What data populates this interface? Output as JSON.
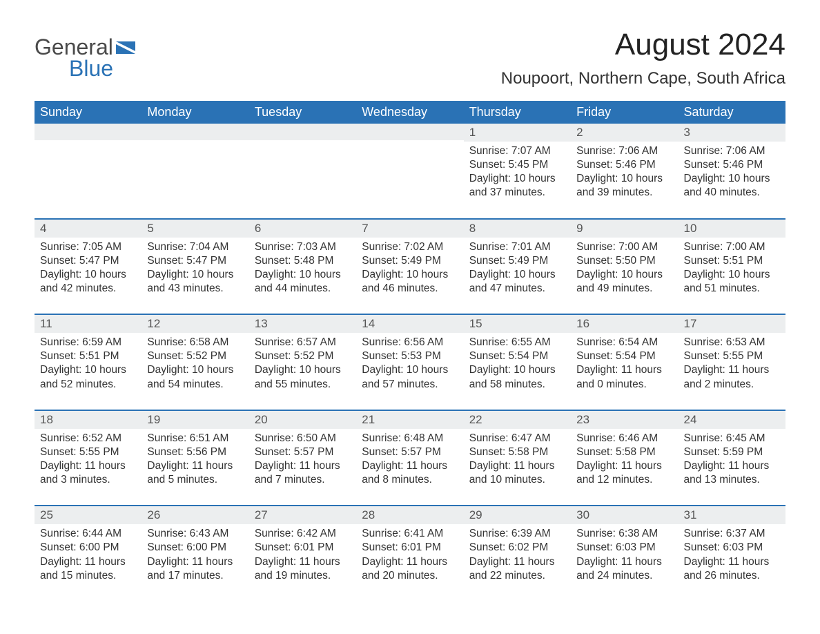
{
  "brand": {
    "word1": "General",
    "word2": "Blue",
    "flag_color": "#2a72b5",
    "text_gray": "#4a4a4a"
  },
  "title": "August 2024",
  "location": "Noupoort, Northern Cape, South Africa",
  "colors": {
    "header_bg": "#2a72b5",
    "header_fg": "#ffffff",
    "daynum_bg": "#eceeef",
    "daynum_fg": "#555555",
    "cell_border": "#2a72b5",
    "body_text": "#333333",
    "page_bg": "#ffffff"
  },
  "typography": {
    "title_fontsize": 44,
    "location_fontsize": 24,
    "header_fontsize": 18,
    "daynum_fontsize": 17,
    "cell_fontsize": 15.5,
    "logo_fontsize": 32,
    "font_family": "Arial"
  },
  "days_of_week": [
    "Sunday",
    "Monday",
    "Tuesday",
    "Wednesday",
    "Thursday",
    "Friday",
    "Saturday"
  ],
  "weeks": [
    [
      {
        "n": "",
        "sunrise": "",
        "sunset": "",
        "daylight": ""
      },
      {
        "n": "",
        "sunrise": "",
        "sunset": "",
        "daylight": ""
      },
      {
        "n": "",
        "sunrise": "",
        "sunset": "",
        "daylight": ""
      },
      {
        "n": "",
        "sunrise": "",
        "sunset": "",
        "daylight": ""
      },
      {
        "n": "1",
        "sunrise": "Sunrise: 7:07 AM",
        "sunset": "Sunset: 5:45 PM",
        "daylight": "Daylight: 10 hours and 37 minutes."
      },
      {
        "n": "2",
        "sunrise": "Sunrise: 7:06 AM",
        "sunset": "Sunset: 5:46 PM",
        "daylight": "Daylight: 10 hours and 39 minutes."
      },
      {
        "n": "3",
        "sunrise": "Sunrise: 7:06 AM",
        "sunset": "Sunset: 5:46 PM",
        "daylight": "Daylight: 10 hours and 40 minutes."
      }
    ],
    [
      {
        "n": "4",
        "sunrise": "Sunrise: 7:05 AM",
        "sunset": "Sunset: 5:47 PM",
        "daylight": "Daylight: 10 hours and 42 minutes."
      },
      {
        "n": "5",
        "sunrise": "Sunrise: 7:04 AM",
        "sunset": "Sunset: 5:47 PM",
        "daylight": "Daylight: 10 hours and 43 minutes."
      },
      {
        "n": "6",
        "sunrise": "Sunrise: 7:03 AM",
        "sunset": "Sunset: 5:48 PM",
        "daylight": "Daylight: 10 hours and 44 minutes."
      },
      {
        "n": "7",
        "sunrise": "Sunrise: 7:02 AM",
        "sunset": "Sunset: 5:49 PM",
        "daylight": "Daylight: 10 hours and 46 minutes."
      },
      {
        "n": "8",
        "sunrise": "Sunrise: 7:01 AM",
        "sunset": "Sunset: 5:49 PM",
        "daylight": "Daylight: 10 hours and 47 minutes."
      },
      {
        "n": "9",
        "sunrise": "Sunrise: 7:00 AM",
        "sunset": "Sunset: 5:50 PM",
        "daylight": "Daylight: 10 hours and 49 minutes."
      },
      {
        "n": "10",
        "sunrise": "Sunrise: 7:00 AM",
        "sunset": "Sunset: 5:51 PM",
        "daylight": "Daylight: 10 hours and 51 minutes."
      }
    ],
    [
      {
        "n": "11",
        "sunrise": "Sunrise: 6:59 AM",
        "sunset": "Sunset: 5:51 PM",
        "daylight": "Daylight: 10 hours and 52 minutes."
      },
      {
        "n": "12",
        "sunrise": "Sunrise: 6:58 AM",
        "sunset": "Sunset: 5:52 PM",
        "daylight": "Daylight: 10 hours and 54 minutes."
      },
      {
        "n": "13",
        "sunrise": "Sunrise: 6:57 AM",
        "sunset": "Sunset: 5:52 PM",
        "daylight": "Daylight: 10 hours and 55 minutes."
      },
      {
        "n": "14",
        "sunrise": "Sunrise: 6:56 AM",
        "sunset": "Sunset: 5:53 PM",
        "daylight": "Daylight: 10 hours and 57 minutes."
      },
      {
        "n": "15",
        "sunrise": "Sunrise: 6:55 AM",
        "sunset": "Sunset: 5:54 PM",
        "daylight": "Daylight: 10 hours and 58 minutes."
      },
      {
        "n": "16",
        "sunrise": "Sunrise: 6:54 AM",
        "sunset": "Sunset: 5:54 PM",
        "daylight": "Daylight: 11 hours and 0 minutes."
      },
      {
        "n": "17",
        "sunrise": "Sunrise: 6:53 AM",
        "sunset": "Sunset: 5:55 PM",
        "daylight": "Daylight: 11 hours and 2 minutes."
      }
    ],
    [
      {
        "n": "18",
        "sunrise": "Sunrise: 6:52 AM",
        "sunset": "Sunset: 5:55 PM",
        "daylight": "Daylight: 11 hours and 3 minutes."
      },
      {
        "n": "19",
        "sunrise": "Sunrise: 6:51 AM",
        "sunset": "Sunset: 5:56 PM",
        "daylight": "Daylight: 11 hours and 5 minutes."
      },
      {
        "n": "20",
        "sunrise": "Sunrise: 6:50 AM",
        "sunset": "Sunset: 5:57 PM",
        "daylight": "Daylight: 11 hours and 7 minutes."
      },
      {
        "n": "21",
        "sunrise": "Sunrise: 6:48 AM",
        "sunset": "Sunset: 5:57 PM",
        "daylight": "Daylight: 11 hours and 8 minutes."
      },
      {
        "n": "22",
        "sunrise": "Sunrise: 6:47 AM",
        "sunset": "Sunset: 5:58 PM",
        "daylight": "Daylight: 11 hours and 10 minutes."
      },
      {
        "n": "23",
        "sunrise": "Sunrise: 6:46 AM",
        "sunset": "Sunset: 5:58 PM",
        "daylight": "Daylight: 11 hours and 12 minutes."
      },
      {
        "n": "24",
        "sunrise": "Sunrise: 6:45 AM",
        "sunset": "Sunset: 5:59 PM",
        "daylight": "Daylight: 11 hours and 13 minutes."
      }
    ],
    [
      {
        "n": "25",
        "sunrise": "Sunrise: 6:44 AM",
        "sunset": "Sunset: 6:00 PM",
        "daylight": "Daylight: 11 hours and 15 minutes."
      },
      {
        "n": "26",
        "sunrise": "Sunrise: 6:43 AM",
        "sunset": "Sunset: 6:00 PM",
        "daylight": "Daylight: 11 hours and 17 minutes."
      },
      {
        "n": "27",
        "sunrise": "Sunrise: 6:42 AM",
        "sunset": "Sunset: 6:01 PM",
        "daylight": "Daylight: 11 hours and 19 minutes."
      },
      {
        "n": "28",
        "sunrise": "Sunrise: 6:41 AM",
        "sunset": "Sunset: 6:01 PM",
        "daylight": "Daylight: 11 hours and 20 minutes."
      },
      {
        "n": "29",
        "sunrise": "Sunrise: 6:39 AM",
        "sunset": "Sunset: 6:02 PM",
        "daylight": "Daylight: 11 hours and 22 minutes."
      },
      {
        "n": "30",
        "sunrise": "Sunrise: 6:38 AM",
        "sunset": "Sunset: 6:03 PM",
        "daylight": "Daylight: 11 hours and 24 minutes."
      },
      {
        "n": "31",
        "sunrise": "Sunrise: 6:37 AM",
        "sunset": "Sunset: 6:03 PM",
        "daylight": "Daylight: 11 hours and 26 minutes."
      }
    ]
  ]
}
